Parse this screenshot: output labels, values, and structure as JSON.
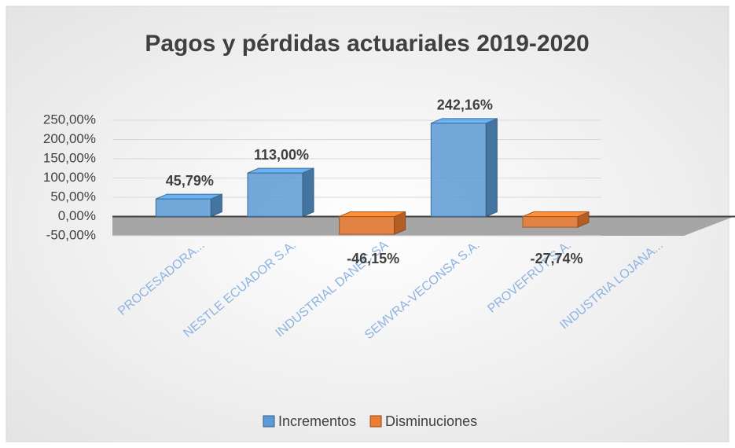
{
  "chart_data": {
    "type": "bar",
    "title": "Pagos y pérdidas actuariales 2019-2020",
    "categories": [
      "PROCESADORA...",
      "NESTLE ECUADOR S.A.",
      "INDUSTRIAL DANEC SA",
      "SEMVRA-VECONSA S.A.",
      "PROVEFRUT S.A.",
      "INDUSTRIA LOJANA..."
    ],
    "series": [
      {
        "name": "Incrementos",
        "color": "#5b9bd5",
        "values": [
          45.79,
          113.0,
          null,
          242.16,
          null,
          null
        ],
        "value_labels": [
          "45,79%",
          "113,00%",
          null,
          "242,16%",
          null,
          null
        ]
      },
      {
        "name": "Disminuciones",
        "color": "#ed7d31",
        "values": [
          null,
          null,
          -46.15,
          null,
          -27.74,
          null
        ],
        "value_labels": [
          null,
          null,
          "-46,15%",
          null,
          "-27,74%",
          null
        ]
      }
    ],
    "ylim": [
      -50,
      250
    ],
    "yticks": [
      {
        "value": -50,
        "label": "-50,00%"
      },
      {
        "value": 0,
        "label": "0,00%"
      },
      {
        "value": 50,
        "label": "50,00%"
      },
      {
        "value": 100,
        "label": "100,00%"
      },
      {
        "value": 150,
        "label": "150,00%"
      },
      {
        "value": 200,
        "label": "200,00%"
      },
      {
        "value": 250,
        "label": "250,00%"
      }
    ],
    "grid": true,
    "legend": "bottom"
  }
}
